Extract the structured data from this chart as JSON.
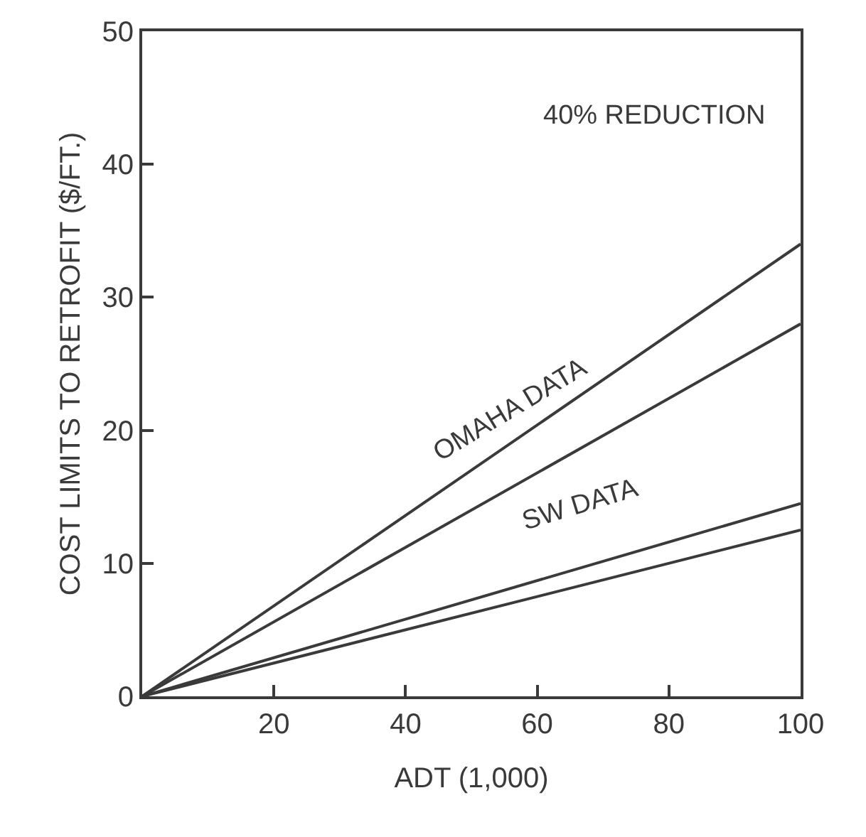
{
  "chart_data": {
    "type": "line",
    "xlabel": "ADT (1,000)",
    "ylabel": "COST LIMITS TO RETROFIT ($/FT.)",
    "x": [
      0,
      100
    ],
    "series": [
      {
        "color": "#3a3a3a",
        "values": [
          0,
          34
        ]
      },
      {
        "color": "#3a3a3a",
        "values": [
          0,
          28
        ]
      },
      {
        "color": "#3a3a3a",
        "values": [
          0,
          14.5
        ]
      },
      {
        "color": "#3a3a3a",
        "values": [
          0,
          12.5
        ]
      }
    ],
    "annotations": [
      "40% REDUCTION",
      "OMAHA DATA",
      "SW DATA"
    ],
    "xlim": [
      0,
      100
    ],
    "xticks": [
      {
        "value": 0,
        "label": null
      },
      20,
      40,
      60,
      80,
      100
    ],
    "ylim": [
      0,
      50
    ],
    "yticks": [
      0,
      10,
      20,
      30,
      40,
      50
    ],
    "marker": "none",
    "line_style": "solid"
  }
}
